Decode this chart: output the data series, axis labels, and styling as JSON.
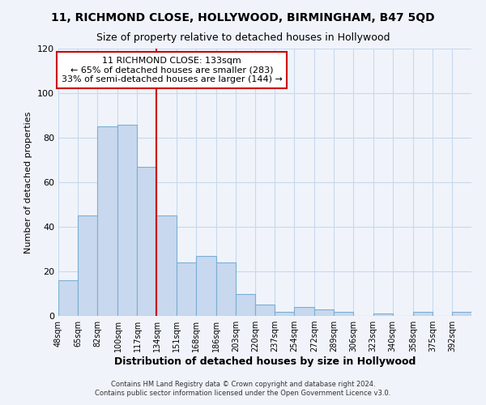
{
  "title1": "11, RICHMOND CLOSE, HOLLYWOOD, BIRMINGHAM, B47 5QD",
  "title2": "Size of property relative to detached houses in Hollywood",
  "xlabel": "Distribution of detached houses by size in Hollywood",
  "ylabel": "Number of detached properties",
  "footer1": "Contains HM Land Registry data © Crown copyright and database right 2024.",
  "footer2": "Contains public sector information licensed under the Open Government Licence v3.0.",
  "bin_labels": [
    "48sqm",
    "65sqm",
    "82sqm",
    "100sqm",
    "117sqm",
    "134sqm",
    "151sqm",
    "168sqm",
    "186sqm",
    "203sqm",
    "220sqm",
    "237sqm",
    "254sqm",
    "272sqm",
    "289sqm",
    "306sqm",
    "323sqm",
    "340sqm",
    "358sqm",
    "375sqm",
    "392sqm"
  ],
  "bin_edges": [
    48,
    65,
    82,
    100,
    117,
    134,
    151,
    168,
    186,
    203,
    220,
    237,
    254,
    272,
    289,
    306,
    323,
    340,
    358,
    375,
    392
  ],
  "bar_heights": [
    16,
    45,
    85,
    86,
    67,
    45,
    24,
    27,
    24,
    10,
    5,
    2,
    4,
    3,
    2,
    0,
    1,
    0,
    2,
    0,
    2
  ],
  "bar_color": "#c8d8ee",
  "bar_edge_color": "#7aafd4",
  "reference_line_x": 134,
  "reference_line_color": "#cc0000",
  "annotation_box_edge_color": "#cc0000",
  "annotation_text_line1": "11 RICHMOND CLOSE: 133sqm",
  "annotation_text_line2": "← 65% of detached houses are smaller (283)",
  "annotation_text_line3": "33% of semi-detached houses are larger (144) →",
  "ylim": [
    0,
    120
  ],
  "yticks": [
    0,
    20,
    40,
    60,
    80,
    100,
    120
  ],
  "background_color": "#f0f4fa",
  "grid_color": "#c8d8ee"
}
